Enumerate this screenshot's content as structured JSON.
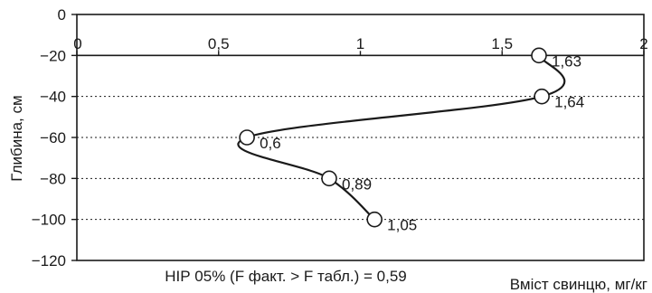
{
  "chart_data": {
    "type": "line",
    "xlabel": "Вміст свинцю, мг/кг",
    "ylabel": "Глибина, см",
    "annotation": "НІР 05% (F факт. > F табл.) = 0,59",
    "xlim": [
      0,
      2
    ],
    "ylim": [
      -120,
      0
    ],
    "x_ticks": [
      0,
      0.5,
      1,
      1.5,
      2
    ],
    "x_tick_labels": [
      "0",
      "0,5",
      "1",
      "1,5",
      "2"
    ],
    "y_ticks": [
      0,
      -20,
      -40,
      -60,
      -80,
      -100,
      -120
    ],
    "y_tick_labels": [
      "0",
      "−20",
      "−40",
      "−60",
      "−80",
      "−100",
      "−120"
    ],
    "x_axis_position": "top",
    "grid": "horizontal-dotted",
    "series": [
      {
        "points": [
          {
            "x": 1.63,
            "y": -20,
            "label": "1,63"
          },
          {
            "x": 1.64,
            "y": -40,
            "label": "1,64"
          },
          {
            "x": 0.6,
            "y": -60,
            "label": "0,6"
          },
          {
            "x": 0.89,
            "y": -80,
            "label": "0,89"
          },
          {
            "x": 1.05,
            "y": -100,
            "label": "1,05"
          }
        ]
      }
    ]
  }
}
